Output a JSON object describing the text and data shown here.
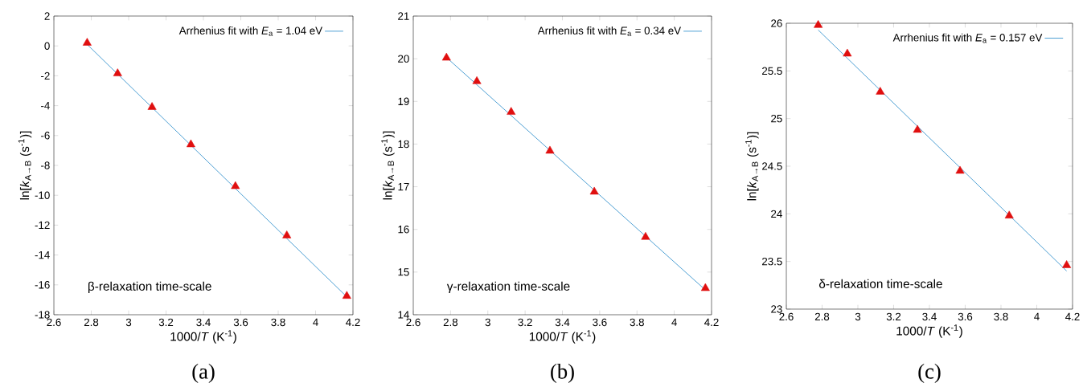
{
  "chart_data": [
    {
      "type": "scatter",
      "xlabel": "1000/*T* (K$^{-1}$)",
      "ylabel": "ln[*k*$_{A→B}$ (s$^{-1}$)]",
      "xlim": [
        2.6,
        4.2
      ],
      "ylim": [
        -18,
        2
      ],
      "xticks": [
        2.6,
        2.8,
        3,
        3.2,
        3.4,
        3.6,
        3.8,
        4,
        4.2
      ],
      "yticks": [
        -18,
        -16,
        -14,
        -12,
        -10,
        -8,
        -6,
        -4,
        -2,
        0,
        2
      ],
      "grid": false,
      "legend": "top right",
      "annotations": [
        "β-relaxation time-scale",
        "(a)"
      ],
      "series": [
        {
          "marker": "triangle",
          "color": "#e00f0f",
          "x": [
            2.778,
            2.941,
            3.125,
            3.333,
            3.571,
            3.846,
            4.167
          ],
          "values": [
            0.2,
            -1.85,
            -4.1,
            -6.6,
            -9.4,
            -12.7,
            -16.75
          ]
        },
        {
          "type": "line",
          "name": "Arrhenius fit with *E*$_{a}$ = 1.04 eV",
          "color": "#1f87c8",
          "x": [
            2.778,
            4.167
          ],
          "values": [
            0.1,
            -16.8
          ]
        }
      ]
    },
    {
      "type": "scatter",
      "xlabel": "1000/*T* (K$^{-1}$)",
      "ylabel": "ln[*k*$_{A→B}$ (s$^{-1}$)]",
      "xlim": [
        2.6,
        4.2
      ],
      "ylim": [
        14,
        21
      ],
      "xticks": [
        2.6,
        2.8,
        3,
        3.2,
        3.4,
        3.6,
        3.8,
        4,
        4.2
      ],
      "yticks": [
        14,
        15,
        16,
        17,
        18,
        19,
        20,
        21
      ],
      "grid": false,
      "legend": "top right",
      "annotations": [
        "γ-relaxation time-scale",
        "(b)"
      ],
      "series": [
        {
          "marker": "triangle",
          "color": "#e00f0f",
          "x": [
            2.778,
            2.941,
            3.125,
            3.333,
            3.571,
            3.846,
            4.167
          ],
          "values": [
            20.02,
            19.47,
            18.75,
            17.84,
            16.88,
            15.82,
            14.62
          ]
        },
        {
          "type": "line",
          "name": "Arrhenius fit with *E*$_{a}$ = 0.34 eV",
          "color": "#1f87c8",
          "x": [
            2.778,
            4.167
          ],
          "values": [
            20.03,
            14.58
          ]
        }
      ]
    },
    {
      "type": "scatter",
      "xlabel": "1000/*T* (K$^{-1}$)",
      "ylabel": "ln[*k*$_{A→B}$ (s$^{-1}$)]",
      "xlim": [
        2.6,
        4.2
      ],
      "ylim": [
        23,
        26
      ],
      "xticks": [
        2.6,
        2.8,
        3,
        3.2,
        3.4,
        3.6,
        3.8,
        4,
        4.2
      ],
      "yticks": [
        23,
        23.5,
        24,
        24.5,
        25,
        25.5,
        26
      ],
      "grid": false,
      "legend": "top right",
      "annotations": [
        "δ-relaxation time-scale",
        "(c)"
      ],
      "series": [
        {
          "marker": "triangle",
          "color": "#e00f0f",
          "x": [
            2.778,
            2.941,
            3.125,
            3.333,
            3.571,
            3.846,
            4.167
          ],
          "values": [
            25.98,
            25.68,
            25.28,
            24.88,
            24.45,
            23.98,
            23.46
          ]
        },
        {
          "type": "line",
          "name": "Arrhenius fit with *E*$_{a}$ = 0.157 eV",
          "color": "#1f87c8",
          "x": [
            2.778,
            4.167
          ],
          "values": [
            25.93,
            23.4
          ]
        }
      ]
    }
  ]
}
